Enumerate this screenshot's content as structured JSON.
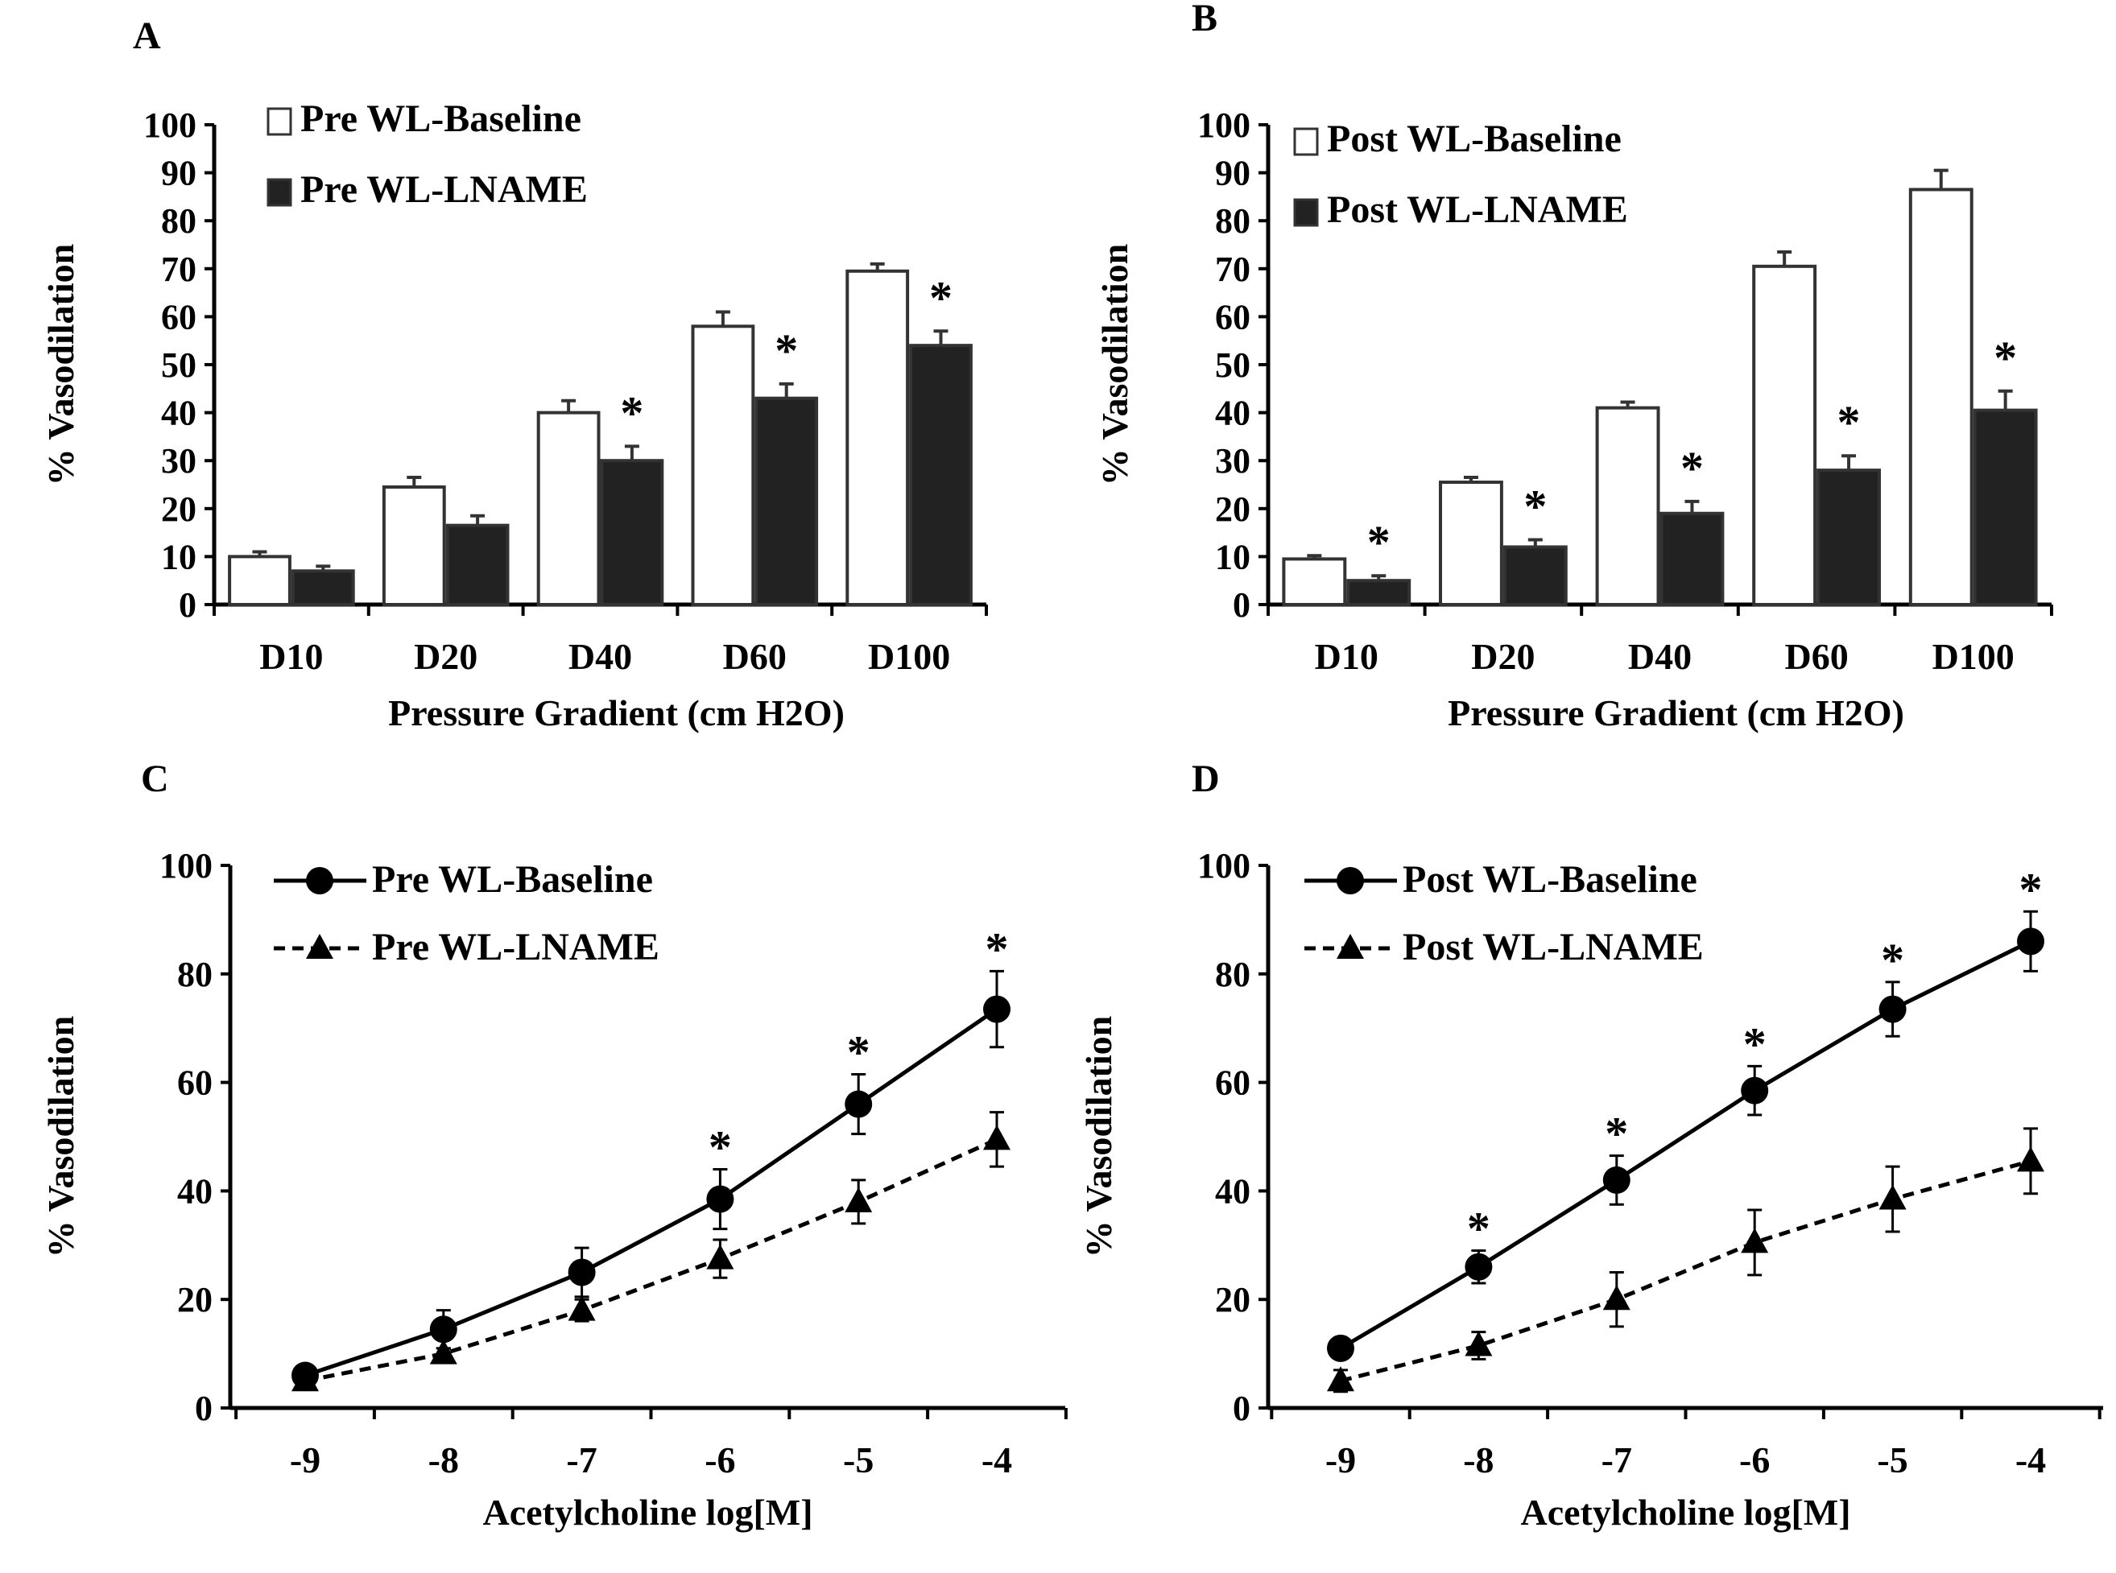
{
  "chart_data": [
    {
      "panel": "A",
      "type": "bar",
      "categories": [
        "D10",
        "D20",
        "D40",
        "D60",
        "D100"
      ],
      "xlabel": "Pressure Gradient (cm H2O)",
      "ylabel": "% Vasodilation",
      "ylim": [
        0,
        100
      ],
      "yticks": [
        0,
        10,
        20,
        30,
        40,
        50,
        60,
        70,
        80,
        90,
        100
      ],
      "legend_placement": "top-left",
      "series": [
        {
          "name": "Pre WL-Baseline",
          "fill": "#ffffff",
          "values": [
            10,
            24.5,
            40,
            58,
            69.5
          ],
          "errors": [
            1,
            2,
            2.5,
            3,
            1.5
          ]
        },
        {
          "name": "Pre WL-LNAME",
          "fill": "#222222",
          "values": [
            7,
            16.5,
            30,
            43,
            54
          ],
          "errors": [
            1,
            2,
            3,
            3,
            3
          ]
        }
      ],
      "significant": [
        false,
        false,
        true,
        true,
        true
      ]
    },
    {
      "panel": "B",
      "type": "bar",
      "categories": [
        "D10",
        "D20",
        "D40",
        "D60",
        "D100"
      ],
      "xlabel": "Pressure Gradient (cm H2O)",
      "ylabel": "% Vasodilation",
      "ylim": [
        0,
        100
      ],
      "yticks": [
        0,
        10,
        20,
        30,
        40,
        50,
        60,
        70,
        80,
        90,
        100
      ],
      "legend_placement": "top-left",
      "series": [
        {
          "name": "Post WL-Baseline",
          "fill": "#ffffff",
          "values": [
            9.5,
            25.5,
            41,
            70.5,
            86.5
          ],
          "errors": [
            0.7,
            1,
            1.2,
            3,
            4
          ]
        },
        {
          "name": "Post WL-LNAME",
          "fill": "#222222",
          "values": [
            5,
            12,
            19,
            28,
            40.5
          ],
          "errors": [
            1,
            1.5,
            2.5,
            3,
            4
          ]
        }
      ],
      "significant": [
        true,
        true,
        true,
        true,
        true
      ]
    },
    {
      "panel": "C",
      "type": "line",
      "x": [
        -9,
        -8,
        -7,
        -6,
        -5,
        -4
      ],
      "xlabel": "Acetylcholine log[M]",
      "ylabel": "% Vasodilation",
      "ylim": [
        0,
        100
      ],
      "yticks": [
        0,
        20,
        40,
        60,
        80,
        100
      ],
      "legend_placement": "top-left",
      "series": [
        {
          "name": "Pre WL-Baseline",
          "marker": "circle",
          "dash": false,
          "values": [
            6,
            14.5,
            25,
            38.5,
            56,
            73.5
          ],
          "errors": [
            1.5,
            3.5,
            4.5,
            5.5,
            5.5,
            7
          ]
        },
        {
          "name": "Pre WL-LNAME",
          "marker": "triangle",
          "dash": true,
          "values": [
            5,
            10,
            18,
            27.5,
            38,
            49.5
          ],
          "errors": [
            1,
            1,
            2,
            3.5,
            4,
            5
          ]
        }
      ],
      "significant": [
        false,
        false,
        false,
        true,
        true,
        true
      ]
    },
    {
      "panel": "D",
      "type": "line",
      "x": [
        -9,
        -8,
        -7,
        -6,
        -5,
        -4
      ],
      "xlabel": "Acetylcholine log[M]",
      "ylabel": "% Vasodilation",
      "ylim": [
        0,
        100
      ],
      "yticks": [
        0,
        20,
        40,
        60,
        80,
        100
      ],
      "legend_placement": "top-left",
      "series": [
        {
          "name": "Post WL-Baseline",
          "marker": "circle",
          "dash": false,
          "values": [
            11,
            26,
            42,
            58.5,
            73.5,
            86
          ],
          "errors": [
            1,
            3,
            4.5,
            4.5,
            5,
            5.5
          ]
        },
        {
          "name": "Post WL-LNAME",
          "marker": "triangle",
          "dash": true,
          "values": [
            5,
            11.5,
            20,
            30.5,
            38.5,
            45.5
          ],
          "errors": [
            2,
            2.5,
            5,
            6,
            6,
            6
          ]
        }
      ],
      "significant": [
        false,
        true,
        true,
        true,
        true,
        true
      ]
    }
  ],
  "star_symbol": "*"
}
